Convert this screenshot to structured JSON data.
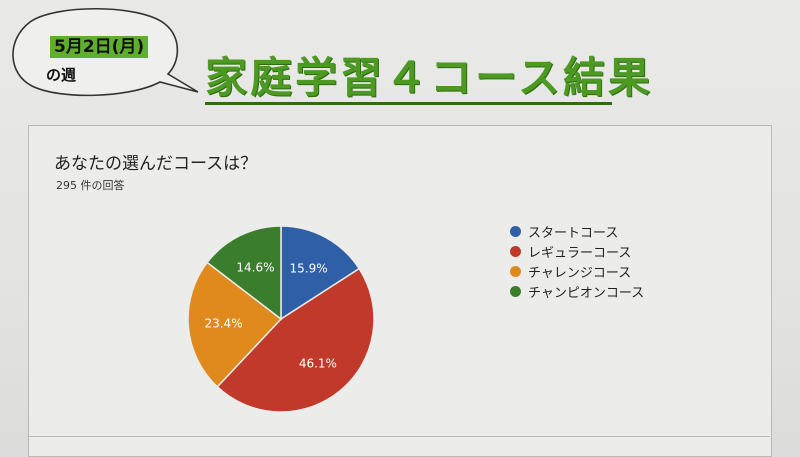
{
  "header": {
    "date": "5月2日(月)",
    "week_suffix": "の週",
    "title": "家庭学習４コース結果"
  },
  "form": {
    "question": "あなたの選んだコースは？",
    "response_count": "295 件の回答"
  },
  "chart_data": {
    "type": "pie",
    "title": "",
    "categories": [
      "スタートコース",
      "レギュラーコース",
      "チャレンジコース",
      "チャンピオンコース"
    ],
    "values": [
      15.9,
      46.1,
      23.4,
      14.6
    ],
    "labels": [
      "15.9%",
      "46.1%",
      "23.4%",
      "14.6%"
    ],
    "colors": [
      "#2f5fa6",
      "#c0392b",
      "#e08a1e",
      "#3a7d2c"
    ],
    "legend_position": "right"
  }
}
